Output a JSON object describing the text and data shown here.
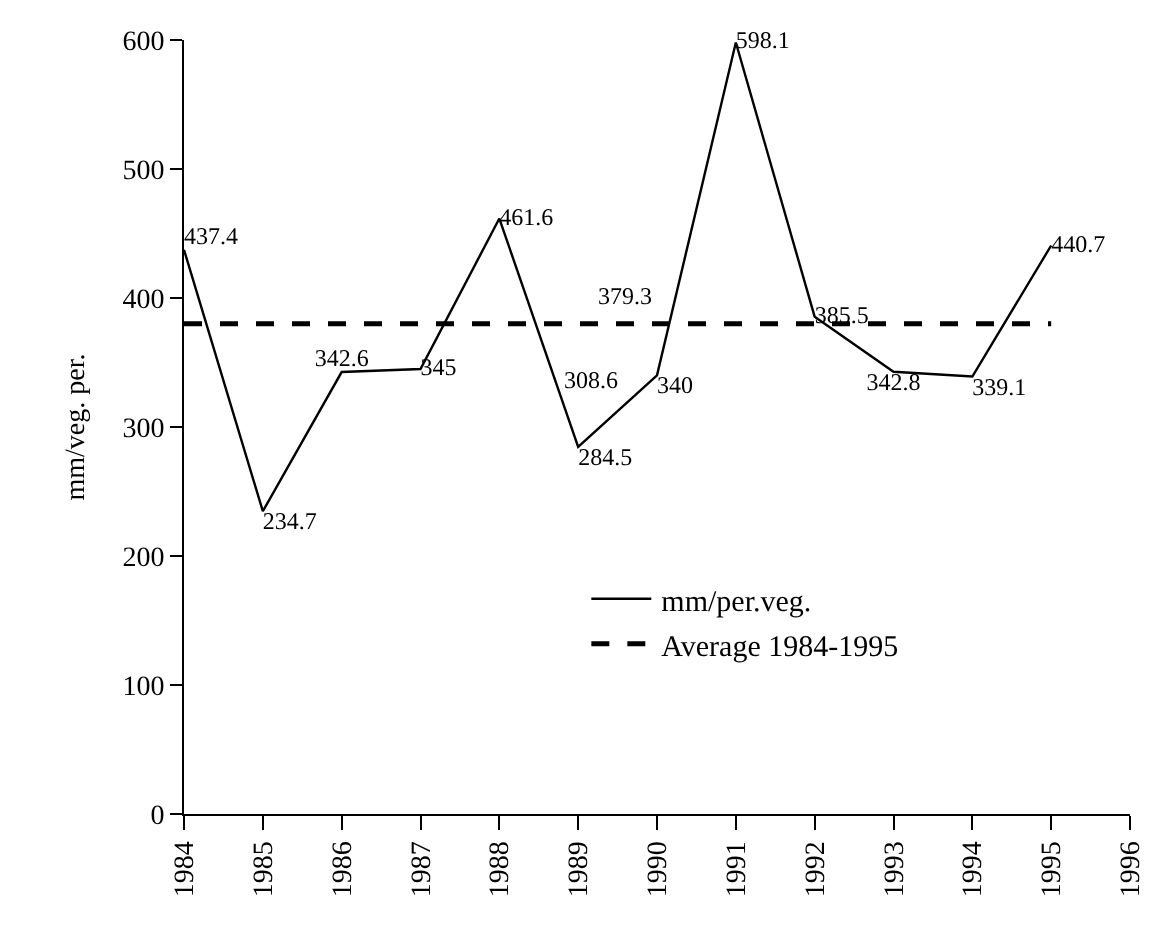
{
  "chart_data": {
    "type": "line",
    "ylabel": "mm/veg. per.",
    "categories": [
      "1984",
      "1985",
      "1986",
      "1987",
      "1988",
      "1989",
      "1990",
      "1991",
      "1992",
      "1993",
      "1994",
      "1995",
      "1996"
    ],
    "series": [
      {
        "name": "mm/per.veg.",
        "color": "#000000",
        "line_style": "solid",
        "values": [
          437.4,
          234.7,
          342.6,
          345,
          461.6,
          284.5,
          340,
          598.1,
          385.5,
          342.8,
          339.1,
          440.7,
          null
        ],
        "value_labels": [
          "437.4",
          "234.7",
          "342.6",
          "345",
          "461.6",
          "284.5",
          "340",
          "598.1",
          "385.5",
          "342.8",
          "339.1",
          "440.7",
          null
        ]
      },
      {
        "name": "Average 1984-1995",
        "color": "#000000",
        "line_style": "dashed",
        "values": [
          380,
          380,
          380,
          380,
          380,
          380,
          380,
          380,
          380,
          380,
          380,
          380,
          null
        ]
      }
    ],
    "annotations": [
      "379.3",
      "308.6"
    ],
    "ylim": [
      0,
      600
    ],
    "yticks": [
      0,
      100,
      200,
      300,
      400,
      500,
      600
    ],
    "legend": "bottom right",
    "marker": "none"
  }
}
